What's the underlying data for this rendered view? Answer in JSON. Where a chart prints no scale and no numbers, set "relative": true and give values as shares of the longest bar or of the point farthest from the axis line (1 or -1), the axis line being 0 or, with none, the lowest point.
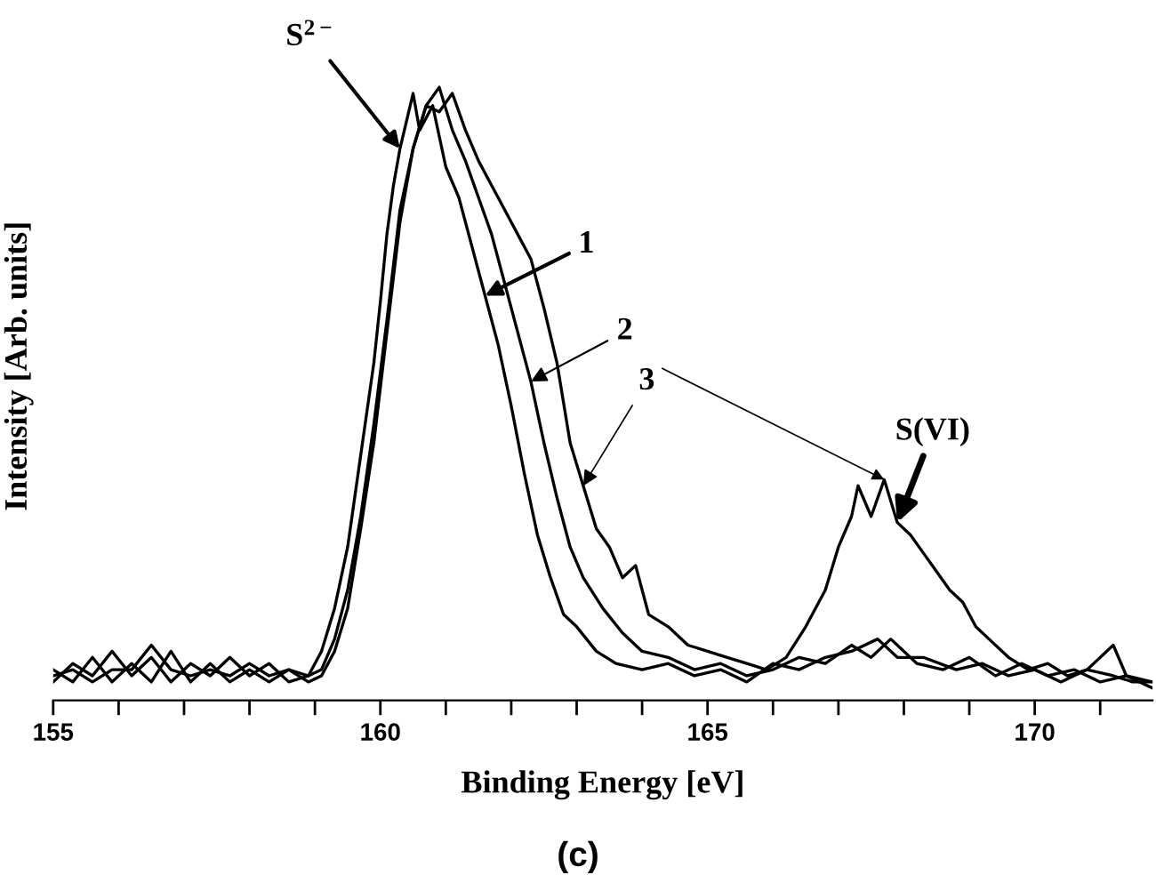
{
  "chart_data": {
    "type": "line",
    "title": "(c)",
    "xlabel": "Binding Energy [eV]",
    "ylabel": "Intensity [Arb. units]",
    "relative": true,
    "xlim": [
      155,
      171.8
    ],
    "xticks": [
      155,
      {
        "value": 156,
        "label": null
      },
      {
        "value": 157,
        "label": null
      },
      {
        "value": 158,
        "label": null
      },
      {
        "value": 159,
        "label": null
      },
      160,
      {
        "value": 161,
        "label": null
      },
      {
        "value": 162,
        "label": null
      },
      {
        "value": 163,
        "label": null
      },
      {
        "value": 164,
        "label": null
      },
      165,
      {
        "value": 166,
        "label": null
      },
      {
        "value": 167,
        "label": null
      },
      {
        "value": 168,
        "label": null
      },
      {
        "value": 169,
        "label": null
      },
      170,
      {
        "value": 171,
        "label": null
      }
    ],
    "grid": false,
    "legend": false,
    "marker": "none",
    "line_style": "solid",
    "tick_labels": "x",
    "annotations": [
      {
        "text": "S$^{2−}$",
        "x": 160.3,
        "y": 0.9
      },
      {
        "text": "1",
        "x": 161.6,
        "y": 0.66
      },
      {
        "text": "2",
        "x": 162.3,
        "y": 0.52
      },
      {
        "text": "3",
        "x": 163.1,
        "y": 0.35
      },
      {
        "text": "S(VI)",
        "x": 167.9,
        "y": 0.29
      }
    ],
    "series": [
      {
        "color": "#000000",
        "x": [
          155.0,
          155.3,
          155.6,
          155.9,
          156.2,
          156.5,
          156.8,
          157.1,
          157.4,
          157.7,
          158.0,
          158.3,
          158.6,
          158.9,
          159.1,
          159.3,
          159.5,
          159.7,
          159.9,
          160.0,
          160.1,
          160.2,
          160.3,
          160.5,
          160.6,
          160.8,
          161.0,
          161.2,
          161.4,
          161.6,
          161.8,
          162.0,
          162.2,
          162.4,
          162.6,
          162.8,
          163.0,
          163.3,
          163.6,
          164.0,
          164.4,
          164.8,
          165.2,
          165.6,
          166.0,
          166.4,
          166.8,
          167.2,
          167.6,
          167.9,
          168.3,
          168.8,
          169.2,
          169.6,
          170.0,
          170.4,
          170.8,
          171.2,
          171.5,
          171.8
        ],
        "values": [
          0.05,
          0.03,
          0.07,
          0.03,
          0.06,
          0.03,
          0.08,
          0.03,
          0.06,
          0.03,
          0.05,
          0.03,
          0.05,
          0.04,
          0.08,
          0.15,
          0.25,
          0.4,
          0.55,
          0.65,
          0.76,
          0.84,
          0.9,
          0.99,
          0.93,
          0.97,
          0.87,
          0.82,
          0.74,
          0.66,
          0.58,
          0.48,
          0.37,
          0.27,
          0.2,
          0.14,
          0.12,
          0.08,
          0.06,
          0.05,
          0.06,
          0.04,
          0.05,
          0.03,
          0.06,
          0.05,
          0.07,
          0.08,
          0.1,
          0.07,
          0.07,
          0.05,
          0.06,
          0.04,
          0.05,
          0.03,
          0.05,
          0.04,
          0.03,
          0.03
        ]
      },
      {
        "color": "#000000",
        "x": [
          155.0,
          155.3,
          155.6,
          155.9,
          156.2,
          156.5,
          156.8,
          157.1,
          157.4,
          157.7,
          158.0,
          158.3,
          158.6,
          158.9,
          159.1,
          159.3,
          159.5,
          159.7,
          159.9,
          160.1,
          160.3,
          160.5,
          160.7,
          160.9,
          161.1,
          161.3,
          161.5,
          161.7,
          161.9,
          162.1,
          162.3,
          162.5,
          162.7,
          162.9,
          163.1,
          163.4,
          163.7,
          164.0,
          164.4,
          164.8,
          165.2,
          165.6,
          166.0,
          166.4,
          166.8,
          167.2,
          167.5,
          167.8,
          168.2,
          168.6,
          169.0,
          169.4,
          169.8,
          170.2,
          170.6,
          171.0,
          171.4,
          171.8
        ],
        "values": [
          0.03,
          0.06,
          0.04,
          0.08,
          0.04,
          0.07,
          0.03,
          0.06,
          0.04,
          0.07,
          0.04,
          0.06,
          0.03,
          0.04,
          0.05,
          0.1,
          0.18,
          0.3,
          0.45,
          0.62,
          0.8,
          0.9,
          0.97,
          1.0,
          0.93,
          0.88,
          0.82,
          0.76,
          0.68,
          0.6,
          0.52,
          0.42,
          0.33,
          0.25,
          0.2,
          0.15,
          0.11,
          0.08,
          0.07,
          0.05,
          0.06,
          0.04,
          0.05,
          0.07,
          0.06,
          0.09,
          0.07,
          0.1,
          0.06,
          0.05,
          0.07,
          0.04,
          0.06,
          0.04,
          0.05,
          0.03,
          0.04,
          0.03
        ]
      },
      {
        "color": "#000000",
        "x": [
          155.0,
          155.3,
          155.6,
          155.9,
          156.2,
          156.5,
          156.8,
          157.1,
          157.4,
          157.7,
          158.0,
          158.3,
          158.6,
          158.9,
          159.1,
          159.3,
          159.5,
          159.7,
          159.9,
          160.1,
          160.3,
          160.5,
          160.7,
          160.9,
          161.1,
          161.3,
          161.5,
          161.7,
          161.9,
          162.1,
          162.3,
          162.5,
          162.7,
          162.9,
          163.1,
          163.3,
          163.5,
          163.7,
          163.9,
          164.1,
          164.4,
          164.7,
          165.0,
          165.3,
          165.6,
          165.9,
          166.2,
          166.5,
          166.8,
          167.0,
          167.2,
          167.3,
          167.5,
          167.7,
          167.9,
          168.1,
          168.3,
          168.5,
          168.7,
          168.9,
          169.1,
          169.3,
          169.6,
          169.9,
          170.2,
          170.5,
          170.8,
          171.2,
          171.4,
          171.8
        ],
        "values": [
          0.04,
          0.05,
          0.03,
          0.05,
          0.05,
          0.09,
          0.05,
          0.04,
          0.05,
          0.04,
          0.06,
          0.04,
          0.05,
          0.03,
          0.04,
          0.08,
          0.15,
          0.28,
          0.42,
          0.6,
          0.78,
          0.9,
          0.97,
          0.96,
          0.99,
          0.93,
          0.88,
          0.84,
          0.8,
          0.76,
          0.72,
          0.64,
          0.55,
          0.42,
          0.35,
          0.28,
          0.25,
          0.2,
          0.22,
          0.14,
          0.12,
          0.09,
          0.08,
          0.07,
          0.06,
          0.05,
          0.07,
          0.12,
          0.18,
          0.25,
          0.3,
          0.35,
          0.3,
          0.36,
          0.29,
          0.27,
          0.24,
          0.21,
          0.18,
          0.16,
          0.12,
          0.1,
          0.07,
          0.05,
          0.06,
          0.04,
          0.05,
          0.09,
          0.04,
          0.02
        ]
      }
    ]
  }
}
